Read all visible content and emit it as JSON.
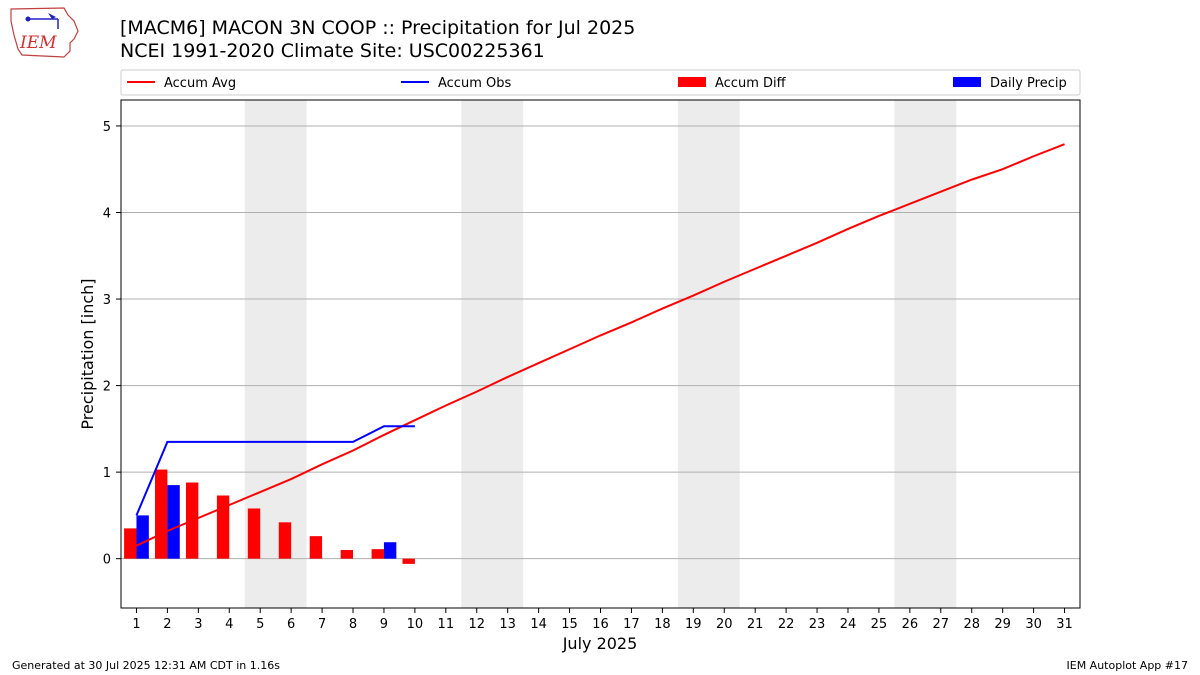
{
  "header": {
    "title": "[MACM6] MACON 3N COOP :: Precipitation for Jul 2025",
    "subtitle": "NCEI 1991-2020 Climate Site: USC00225361",
    "logo_text": "IEM"
  },
  "footer": {
    "generated": "Generated at 30 Jul 2025 12:31 AM CDT in 1.16s",
    "app": "IEM Autoplot App #17"
  },
  "colors": {
    "accum_avg": "#ff0000",
    "accum_obs": "#0000ff",
    "accum_diff": "#ff0000",
    "daily_precip": "#0000ff",
    "weekend_shade": "#ececec",
    "grid": "#b0b0b0"
  },
  "chart_data": {
    "type": "bar",
    "xlabel": "July 2025",
    "ylabel": "Precipitation [inch]",
    "ylim": [
      -0.57,
      5.3
    ],
    "xlim": [
      0.5,
      31.5
    ],
    "yticks": [
      0,
      1,
      2,
      3,
      4,
      5
    ],
    "x": [
      1,
      2,
      3,
      4,
      5,
      6,
      7,
      8,
      9,
      10,
      11,
      12,
      13,
      14,
      15,
      16,
      17,
      18,
      19,
      20,
      21,
      22,
      23,
      24,
      25,
      26,
      27,
      28,
      29,
      30,
      31
    ],
    "grid": "horizontal",
    "legend_position": "top",
    "legend": [
      "Accum Avg",
      "Accum Obs",
      "Accum Diff",
      "Daily Precip"
    ],
    "weekends": [
      [
        5,
        6
      ],
      [
        12,
        13
      ],
      [
        19,
        20
      ],
      [
        26,
        27
      ]
    ],
    "series": [
      {
        "name": "Accum Avg",
        "kind": "line",
        "x": [
          1,
          2,
          3,
          4,
          5,
          6,
          7,
          8,
          9,
          10,
          11,
          12,
          13,
          14,
          15,
          16,
          17,
          18,
          19,
          20,
          21,
          22,
          23,
          24,
          25,
          26,
          27,
          28,
          29,
          30,
          31
        ],
        "values": [
          0.15,
          0.32,
          0.47,
          0.62,
          0.77,
          0.92,
          1.09,
          1.25,
          1.43,
          1.6,
          1.77,
          1.93,
          2.1,
          2.26,
          2.42,
          2.58,
          2.73,
          2.89,
          3.04,
          3.2,
          3.35,
          3.5,
          3.65,
          3.81,
          3.96,
          4.1,
          4.24,
          4.38,
          4.5,
          4.65,
          4.79
        ]
      },
      {
        "name": "Accum Obs",
        "kind": "line",
        "x": [
          1,
          2,
          3,
          4,
          5,
          6,
          7,
          8,
          9,
          10
        ],
        "values": [
          0.5,
          1.35,
          1.35,
          1.35,
          1.35,
          1.35,
          1.35,
          1.35,
          1.53,
          1.53
        ]
      },
      {
        "name": "Accum Diff",
        "kind": "bar",
        "x": [
          1,
          2,
          3,
          4,
          5,
          6,
          7,
          8,
          9,
          10
        ],
        "values": [
          0.35,
          1.03,
          0.88,
          0.73,
          0.58,
          0.42,
          0.26,
          0.1,
          0.11,
          -0.06
        ]
      },
      {
        "name": "Daily Precip",
        "kind": "bar",
        "x": [
          1,
          2,
          9
        ],
        "values": [
          0.5,
          0.85,
          0.19
        ]
      }
    ]
  }
}
